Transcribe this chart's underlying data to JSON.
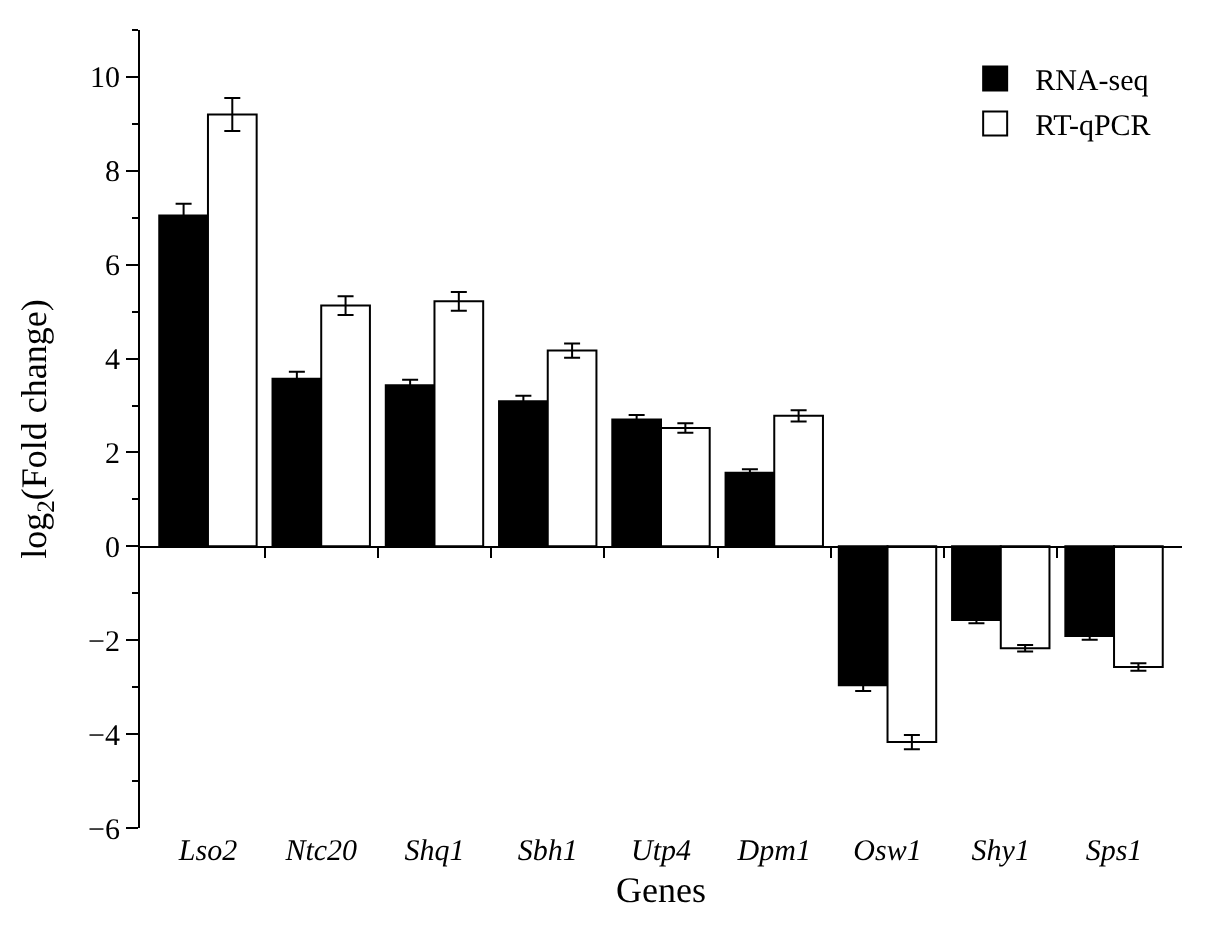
{
  "chart_data": {
    "type": "bar",
    "xlabel": "Genes",
    "ylabel": "log$_{2}$(Fold change)",
    "categories": [
      "Lso2",
      "Ntc20",
      "Shq1",
      "Sbh1",
      "Utp4",
      "Dpm1",
      "Osw1",
      "Shy1",
      "Sps1"
    ],
    "series": [
      {
        "name": "RNA-seq",
        "color": "#000000",
        "values": [
          7.05,
          3.57,
          3.43,
          3.09,
          2.7,
          1.57,
          -2.96,
          -1.57,
          -1.91
        ],
        "errors": [
          0.25,
          0.15,
          0.12,
          0.12,
          0.1,
          0.07,
          0.12,
          0.07,
          0.08
        ]
      },
      {
        "name": "RT-qPCR",
        "color": "#ffffff",
        "values": [
          9.2,
          5.13,
          5.22,
          4.17,
          2.52,
          2.78,
          -4.17,
          -2.17,
          -2.57
        ],
        "errors": [
          0.35,
          0.2,
          0.2,
          0.15,
          0.1,
          0.12,
          0.15,
          0.07,
          0.08
        ]
      }
    ],
    "ylim": [
      -6,
      11
    ],
    "yticks": [
      -6,
      -4,
      -2,
      0,
      2,
      4,
      6,
      8,
      10
    ],
    "legend": "top right"
  }
}
